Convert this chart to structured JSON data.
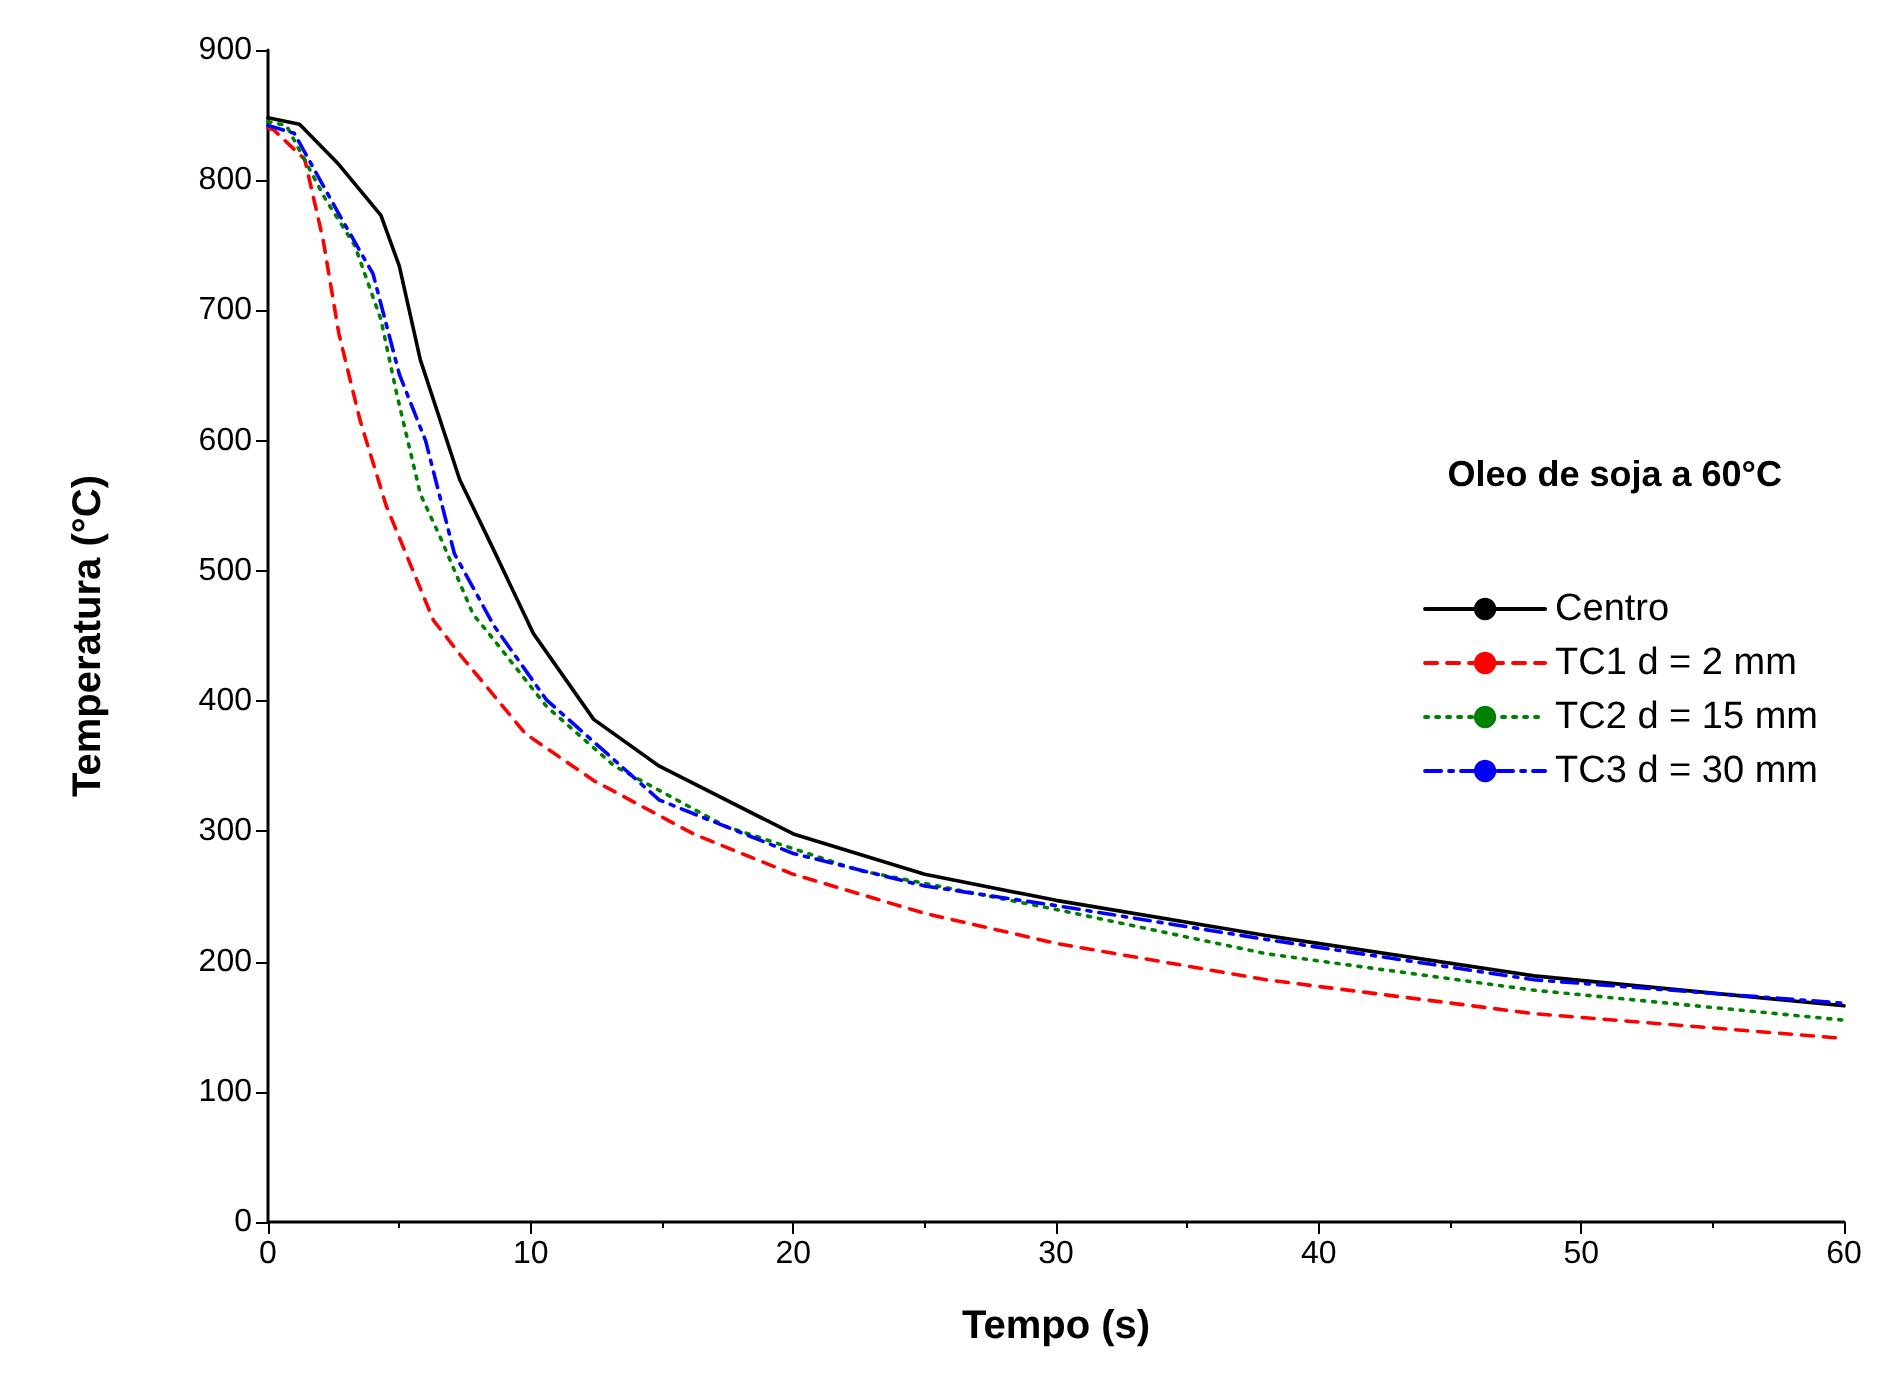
{
  "chart_data": {
    "type": "line",
    "xlabel": "Tempo (s)",
    "ylabel": "Temperatura (°C)",
    "legend_title": "Oleo de soja a 60°C",
    "xlim": [
      0,
      60
    ],
    "xticks": [
      0,
      10,
      20,
      30,
      40,
      50,
      60
    ],
    "ylim": [
      0,
      900
    ],
    "yticks": [
      0,
      100,
      200,
      300,
      400,
      500,
      600,
      700,
      800,
      900
    ],
    "grid": false,
    "legend": "right",
    "marker": "none",
    "series": [
      {
        "name": "Centro",
        "color": "#000000",
        "line_style": "solid",
        "x": [
          0,
          1.2,
          2.7,
          4.3,
          5,
          5.8,
          7.3,
          8.5,
          10.1,
          12.4,
          14.9,
          20,
          25,
          30,
          38,
          48.2,
          60
        ],
        "values": [
          848,
          843,
          812,
          773,
          734,
          662,
          570,
          520,
          452,
          386,
          350,
          298,
          267,
          247,
          220,
          189,
          166
        ]
      },
      {
        "name": "TC1 d = 2 mm",
        "color": "#ff0000",
        "line_style": "dashed",
        "x": [
          0,
          0.2,
          1.4,
          2.1,
          2.7,
          3.5,
          4.5,
          6.3,
          7.3,
          9.8,
          12.4,
          16.2,
          20,
          25,
          30,
          38,
          48.2,
          60
        ],
        "values": [
          840,
          839,
          816,
          754,
          682,
          616,
          550,
          462,
          436,
          375,
          339,
          298,
          267,
          237,
          214,
          186,
          160,
          141
        ]
      },
      {
        "name": "TC2 d = 15 mm",
        "color": "#008000",
        "line_style": "dotted",
        "x": [
          0,
          0.7,
          2.2,
          3.3,
          4.3,
          4.9,
          5.8,
          6.6,
          7.8,
          8.6,
          10.6,
          13.2,
          17.4,
          22.5,
          30,
          38,
          48.2,
          60
        ],
        "values": [
          845,
          842,
          785,
          750,
          693,
          636,
          559,
          524,
          467,
          447,
          396,
          350,
          304,
          270,
          240,
          206,
          178,
          155
        ]
      },
      {
        "name": "TC3 d = 30 mm",
        "color": "#0000ff",
        "line_style": "dashdot",
        "x": [
          0,
          1,
          2.7,
          4,
          5,
          6,
          7.1,
          8.6,
          10.6,
          14.9,
          20,
          25,
          30,
          38,
          48.2,
          60
        ],
        "values": [
          842,
          836,
          774,
          728,
          651,
          600,
          513,
          458,
          401,
          324,
          283,
          258,
          243,
          217,
          186,
          168
        ]
      }
    ]
  }
}
